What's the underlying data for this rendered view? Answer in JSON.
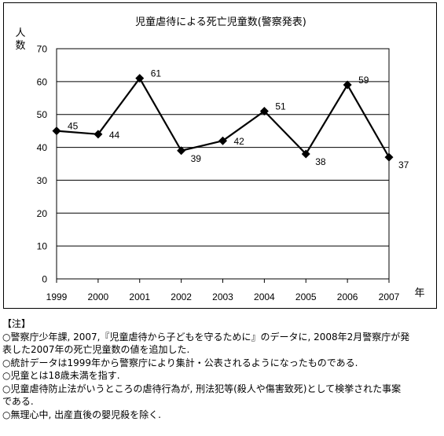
{
  "chart_data": {
    "type": "line",
    "title": "児童虐待による死亡児童数(警察発表)",
    "ylabel_chars": [
      "人",
      "数"
    ],
    "xlabel": "年",
    "categories": [
      "1999",
      "2000",
      "2001",
      "2002",
      "2003",
      "2004",
      "2005",
      "2006",
      "2007"
    ],
    "series": [
      {
        "values": [
          45,
          44,
          61,
          39,
          42,
          51,
          38,
          59,
          37
        ]
      }
    ],
    "ylim": [
      0,
      70
    ],
    "yticks": [
      0,
      10,
      20,
      30,
      40,
      50,
      60,
      70
    ],
    "grid": true,
    "marker": "diamond",
    "data_labels": true
  },
  "notes": {
    "header": "【注】",
    "lines": [
      "○警察庁少年課, 2007,『児童虐待から子どもを守るために』のデータに, 2008年2月警察庁が発",
      "表した2007年の死亡児童数の値を追加した.",
      "○統計データは1999年から警察庁により集計・公表されるようになったものである.",
      "○児童とは18歳未満を指す.",
      "○児童虐待防止法がいうところの虐待行為が, 刑法犯等(殺人や傷害致死)として検挙された事案",
      "である.",
      "○無理心中, 出産直後の嬰児殺を除く."
    ]
  }
}
